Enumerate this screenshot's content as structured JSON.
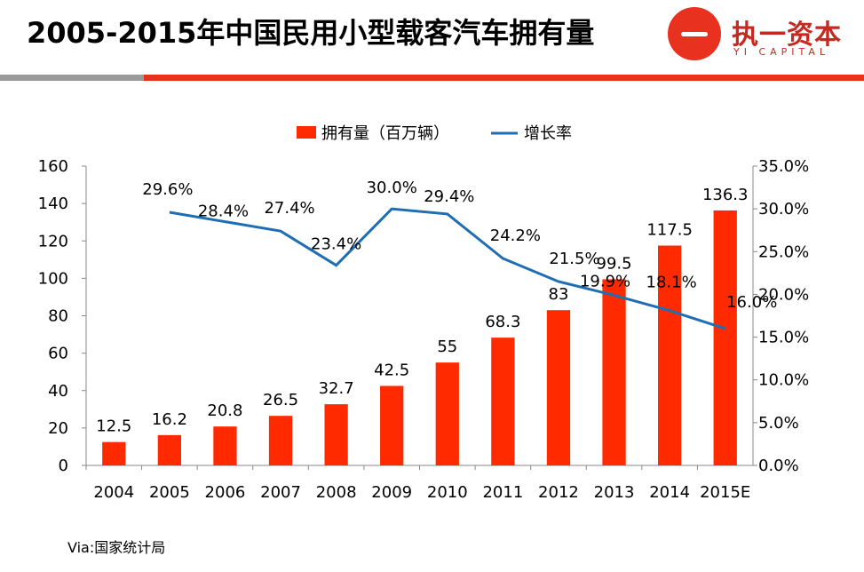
{
  "header": {
    "title": "2005-2015年中国民用小型载客汽车拥有量",
    "logo_cn": "执一资本",
    "logo_en": "YI CAPITAL"
  },
  "footer": {
    "source": "Via:国家统计局"
  },
  "colors": {
    "bar": "#ff2a00",
    "line": "#1f6eb3",
    "accent": "#e8321f",
    "divider_gray": "#9a9a9a"
  },
  "chart_data": {
    "type": "bar",
    "categories": [
      "2004",
      "2005",
      "2006",
      "2007",
      "2008",
      "2009",
      "2010",
      "2011",
      "2012",
      "2013",
      "2014",
      "2015E"
    ],
    "series": [
      {
        "name": "拥有量（百万辆）",
        "type": "bar",
        "axis": "left",
        "values": [
          12.5,
          16.2,
          20.8,
          26.5,
          32.7,
          42.5,
          55,
          68.3,
          83,
          99.5,
          117.5,
          136.3
        ],
        "labels": [
          "12.5",
          "16.2",
          "20.8",
          "26.5",
          "32.7",
          "42.5",
          "55",
          "68.3",
          "83",
          "99.5",
          "117.5",
          "136.3"
        ]
      },
      {
        "name": "增长率",
        "type": "line",
        "axis": "right",
        "values": [
          null,
          29.6,
          null,
          27.4,
          23.4,
          30.0,
          29.4,
          24.2,
          21.5,
          19.9,
          18.1,
          16.0
        ],
        "labels": [
          "",
          "29.6%",
          "28.4%",
          "27.4%",
          "23.4%",
          "30.0%",
          "29.4%",
          "24.2%",
          "21.5%",
          "19.9%",
          "18.1%",
          "16.0%"
        ]
      }
    ],
    "y_left": {
      "min": 0,
      "max": 160,
      "ticks": [
        "0",
        "20",
        "40",
        "60",
        "80",
        "100",
        "120",
        "140",
        "160"
      ]
    },
    "y_right": {
      "min": 0,
      "max": 35,
      "ticks": [
        "0.0%",
        "5.0%",
        "10.0%",
        "15.0%",
        "20.0%",
        "25.0%",
        "30.0%",
        "35.0%"
      ]
    },
    "legend": {
      "placement": "top-center"
    },
    "grid": false
  }
}
